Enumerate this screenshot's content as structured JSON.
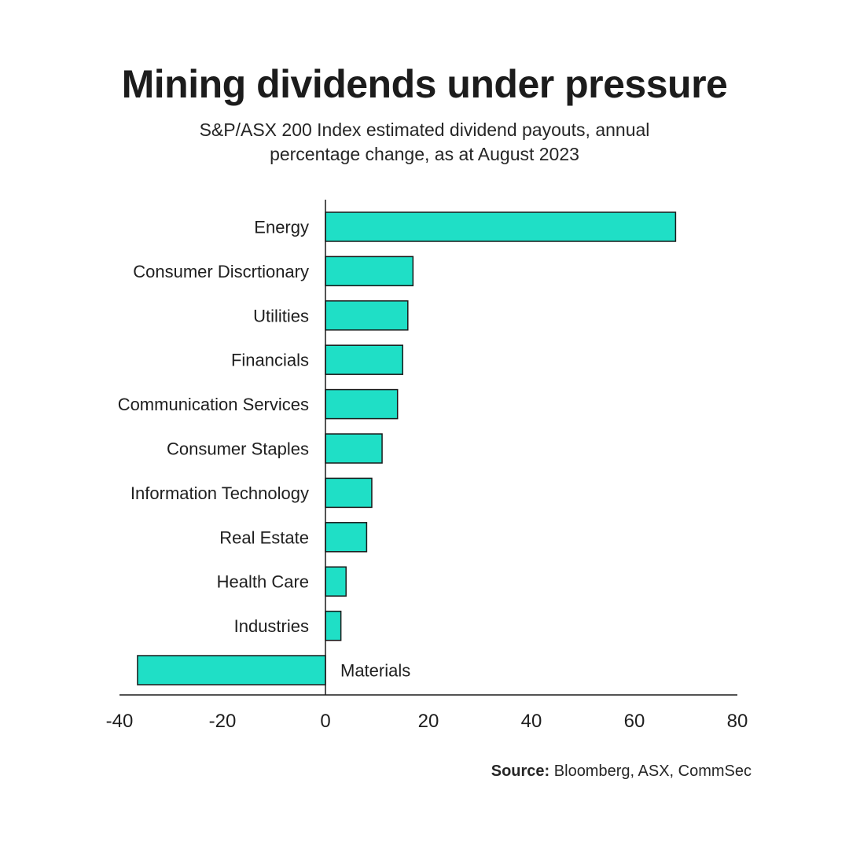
{
  "title": "Mining dividends under pressure",
  "subtitle": "S&P/ASX 200 Index estimated dividend payouts, annual percentage change, as at August 2023",
  "source": {
    "label": "Source:",
    "text": "Bloomberg, ASX, CommSec"
  },
  "colors": {
    "bar": "#1fdfc6",
    "bar_outline": "#1a1a1a",
    "text": "#1e1e1e"
  },
  "chart_data": {
    "type": "bar",
    "orientation": "horizontal",
    "categories": [
      "Energy",
      "Consumer Discrtionary",
      "Utilities",
      "Financials",
      "Communication Services",
      "Consumer Staples",
      "Information Technology",
      "Real Estate",
      "Health Care",
      "Industries",
      "Materials"
    ],
    "values": [
      68,
      17,
      16,
      15,
      14,
      11,
      9,
      8,
      4,
      3,
      -36.5
    ],
    "xlim": [
      -40,
      80
    ],
    "xticks": [
      "-40",
      "-20",
      "0",
      "20",
      "40",
      "60",
      "80"
    ],
    "grid": false,
    "legend": "none"
  }
}
